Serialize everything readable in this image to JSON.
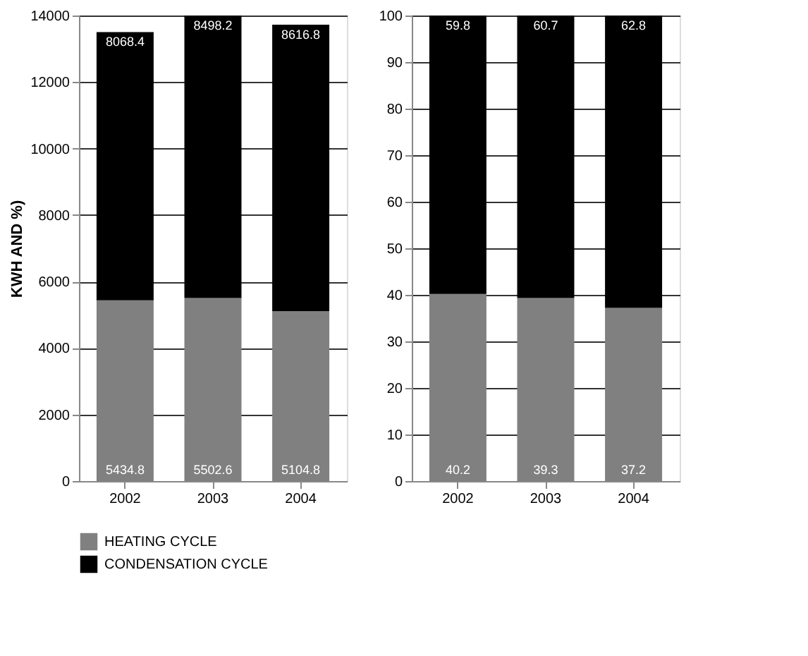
{
  "chart_data": [
    {
      "type": "bar",
      "stacked": true,
      "ylabel": "KWH AND %)",
      "categories": [
        "2002",
        "2003",
        "2004"
      ],
      "series": [
        {
          "name": "HEATING CYCLE",
          "color": "#808080",
          "values": [
            5434.8,
            5502.6,
            5104.8
          ]
        },
        {
          "name": "CONDENSATION CYCLE",
          "color": "#000000",
          "values": [
            8068.4,
            8498.2,
            8616.8
          ]
        }
      ],
      "ylim": [
        0,
        14000
      ],
      "yticks": [
        0,
        2000,
        4000,
        6000,
        8000,
        10000,
        12000,
        14000
      ],
      "grid": "y",
      "legend": "bottom",
      "data_labels": true
    },
    {
      "type": "bar",
      "stacked": true,
      "categories": [
        "2002",
        "2003",
        "2004"
      ],
      "series": [
        {
          "name": "HEATING CYCLE",
          "color": "#808080",
          "values": [
            40.2,
            39.3,
            37.2
          ]
        },
        {
          "name": "CONDENSATION CYCLE",
          "color": "#000000",
          "values": [
            59.8,
            60.7,
            62.8
          ]
        }
      ],
      "ylim": [
        0,
        100
      ],
      "yticks": [
        0,
        10,
        20,
        30,
        40,
        50,
        60,
        70,
        80,
        90,
        100
      ],
      "grid": "y",
      "legend": "bottom",
      "data_labels": true
    }
  ]
}
